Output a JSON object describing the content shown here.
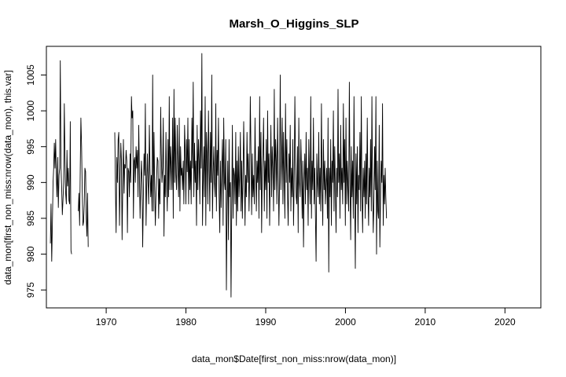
{
  "chart_data": {
    "type": "line",
    "title": "Marsh_O_Higgins_SLP",
    "xlabel": "data_mon$Date[first_non_miss:nrow(data_mon)]",
    "ylabel": "data_mon[first_non_miss:nrow(data_mon), this.var]",
    "xlim": [
      1962.5,
      2024.5
    ],
    "ylim": [
      972.5,
      1009.0
    ],
    "x_ticks": [
      "1970",
      "1980",
      "1990",
      "2000",
      "2010",
      "2020"
    ],
    "y_ticks": [
      "975",
      "980",
      "985",
      "990",
      "995",
      "1000",
      "1005"
    ],
    "grid": false,
    "legend": "none",
    "line_color": "#000000",
    "series": [
      {
        "x_start": 1963.0,
        "x_step": 0.0833,
        "values": [
          981.5,
          987,
          979,
          984,
          990,
          992,
          995.5,
          992,
          996,
          990.5,
          988,
          993.5,
          986.5,
          991,
          992,
          1007,
          992,
          989.5,
          985.5,
          987.5,
          990,
          1001,
          992.5,
          988.5,
          987,
          994.5,
          989.5,
          992,
          987.5,
          987,
          998.5,
          980.5,
          980,
          null,
          null,
          null,
          null,
          null,
          null,
          null,
          null,
          null,
          986,
          988.5,
          984,
          992,
          999,
          995,
          989,
          984,
          984.5,
          987,
          992,
          991.5,
          985,
          982.5,
          988.5,
          981,
          null,
          null,
          null,
          null,
          null,
          null,
          null,
          null,
          null,
          null,
          null,
          null,
          null,
          null,
          null,
          null,
          null,
          null,
          null,
          null,
          null,
          null,
          null,
          null,
          null,
          null,
          null,
          null,
          null,
          null,
          null,
          null,
          null,
          null,
          null,
          null,
          null,
          null,
          null,
          997,
          989,
          983,
          993.5,
          990,
          996,
          997,
          984,
          990,
          995.5,
          993,
          982,
          990,
          996,
          988.5,
          992.5,
          992,
          994.5,
          993,
          983,
          992,
          991.5,
          988,
          994,
          990,
          1002,
          999,
          1000,
          985,
          993,
          993.5,
          990,
          995,
          992,
          994.5,
          988,
          998,
          992,
          985,
          989.5,
          993,
          990,
          981,
          988,
          994,
          991,
          1001,
          984,
          989.5,
          994,
          990,
          987,
          998,
          992,
          988,
          991,
          986,
          1005,
          986,
          997,
          989,
          984,
          988,
          991,
          993.5,
          993,
          985,
          990.5,
          987,
          1000.5,
          994,
          990,
          992,
          999,
          982.5,
          991,
          988,
          997,
          990,
          986,
          996,
          988,
          1002,
          989,
          995,
          992,
          989,
          999,
          985,
          1003,
          990,
          999,
          991,
          989,
          998,
          992,
          988,
          999,
          986,
          995,
          991,
          992,
          989,
          993,
          987,
          998,
          994.5,
          987,
          996,
          991.5,
          999,
          987,
          996,
          989,
          993,
          987,
          999,
          992,
          1004,
          988,
          995.5,
          990,
          993,
          984,
          998,
          989,
          996,
          993,
          987,
          1000,
          992,
          1008,
          984,
          990,
          995,
          988,
          1002,
          984,
          997,
          994,
          987,
          1000,
          993,
          986,
          997,
          990,
          1005,
          985,
          991,
          995,
          990,
          988,
          1001,
          986,
          994.5,
          991,
          999,
          988,
          983,
          993,
          986.5,
          992,
          996,
          984,
          999,
          990,
          989,
          996,
          975,
          987,
          993,
          982,
          996,
          988,
          990,
          974,
          987,
          998,
          985,
          992,
          991,
          987,
          997,
          984,
          993,
          986,
          995,
          988,
          991,
          997,
          986,
          993,
          985,
          990,
          998.5,
          992,
          984,
          991,
          988,
          997,
          990,
          994,
          986,
          991,
          1002,
          994,
          985.5,
          994,
          988,
          991,
          987,
          999,
          992,
          986,
          993,
          990,
          995,
          985,
          1002,
          989,
          997,
          983,
          992,
          994,
          999,
          986,
          993,
          989,
          996,
          985,
          1000,
          990,
          994,
          984,
          991,
          998,
          988,
          995,
          992,
          986,
          1003,
          989,
          996,
          993,
          987,
          999,
          992,
          984,
          990,
          1005,
          989,
          993,
          999,
          987,
          997,
          991,
          985,
          1001,
          990,
          996,
          988,
          984,
          994,
          990,
          998,
          986,
          992,
          988,
          996,
          984,
          990,
          1002,
          993,
          988,
          987,
          995,
          983,
          999,
          990,
          988,
          996,
          992,
          985,
          993,
          981,
          990,
          994,
          987,
          997,
          989,
          992,
          984,
          996,
          991,
          987,
          1002,
          985,
          993,
          989,
          999,
          987,
          992,
          985,
          979,
          994,
          990,
          988,
          997,
          987,
          992,
          986,
          1001,
          990,
          984,
          996,
          989,
          993,
          987,
          990,
          992,
          985,
          999,
          977.5,
          992,
          988,
          996,
          984,
          993,
          990,
          1000,
          986,
          995,
          989,
          983,
          992,
          988,
          1003,
          990,
          994,
          985,
          998,
          989,
          992,
          987,
          1001,
          990,
          996,
          984,
          999,
          987,
          993,
          989,
          986,
          1004,
          990,
          982,
          995,
          988,
          993,
          985,
          1002,
          990,
          978,
          994,
          987,
          995,
          983,
          991,
          989,
          997,
          986,
          1002,
          989,
          983,
          992,
          988,
          993,
          985,
          994,
          987,
          999,
          989,
          984,
          992,
          988,
          996,
          986,
          1002,
          990,
          983,
          987,
          995,
          989,
          1002,
          980,
          993,
          986,
          985,
          998,
          981,
          988,
          993,
          990,
          1001,
          984,
          991,
          987,
          992,
          988,
          985
        ]
      }
    ]
  }
}
